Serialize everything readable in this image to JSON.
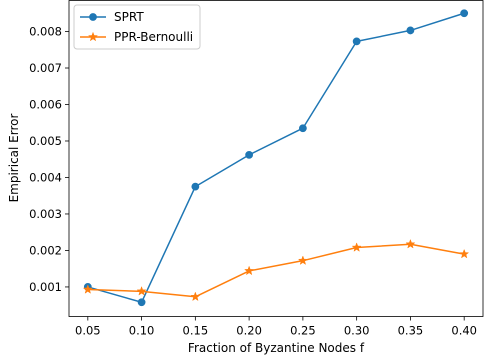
{
  "chart_data": {
    "type": "line",
    "title": "",
    "xlabel": "Fraction of Byzantine Nodes f",
    "ylabel": "Empirical Error",
    "x": [
      0.05,
      0.1,
      0.15,
      0.2,
      0.25,
      0.3,
      0.35,
      0.4
    ],
    "x_ticks": [
      "0.05",
      "0.10",
      "0.15",
      "0.20",
      "0.25",
      "0.30",
      "0.35",
      "0.40"
    ],
    "y_ticks": [
      "0.001",
      "0.002",
      "0.003",
      "0.004",
      "0.005",
      "0.006",
      "0.007",
      "0.008"
    ],
    "xlim": [
      0.0325,
      0.4175
    ],
    "ylim": [
      0.00019,
      0.00885
    ],
    "grid": false,
    "legend_position": "top-left",
    "series": [
      {
        "name": "SPRT",
        "color": "#1f77b4",
        "marker": "circle",
        "values": [
          0.001,
          0.00058,
          0.00375,
          0.00462,
          0.00535,
          0.00773,
          0.00803,
          0.0085
        ]
      },
      {
        "name": "PPR-Bernoulli",
        "color": "#ff7f0e",
        "marker": "star",
        "values": [
          0.00093,
          0.00088,
          0.00073,
          0.00144,
          0.00172,
          0.00208,
          0.00217,
          0.0019
        ]
      }
    ]
  }
}
